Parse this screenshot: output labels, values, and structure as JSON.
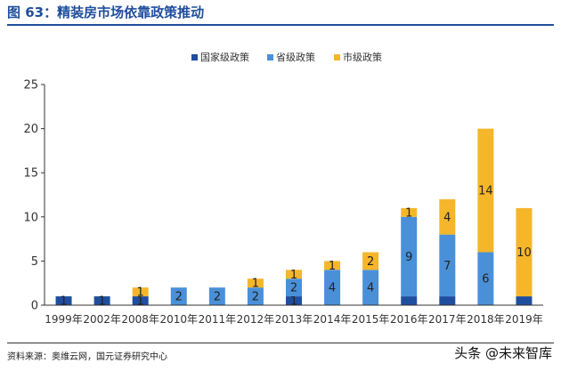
{
  "header": {
    "title": "图 63：精装房市场依靠政策推动"
  },
  "footer": {
    "source": "资料来源：奥维云网，国元证券研究中心",
    "watermark": "头条 @未来智库"
  },
  "colors": {
    "national": "#1f4e9e",
    "provincial": "#4a90d9",
    "municipal": "#f5b62a",
    "title": "#1f4e9e"
  },
  "chart_data": {
    "type": "bar",
    "stacked": true,
    "categories": [
      "1999年",
      "2002年",
      "2008年",
      "2010年",
      "2011年",
      "2012年",
      "2013年",
      "2014年",
      "2015年",
      "2016年",
      "2017年",
      "2018年",
      "2019年"
    ],
    "series": [
      {
        "name": "国家级政策",
        "values": [
          1,
          1,
          1,
          0,
          0,
          0,
          1,
          0,
          0,
          1,
          1,
          0,
          1
        ],
        "labels": [
          "1",
          "1",
          "1",
          "",
          "",
          "",
          "1",
          "",
          "",
          "",
          "",
          "",
          ""
        ]
      },
      {
        "name": "省级政策",
        "values": [
          0,
          0,
          0,
          2,
          2,
          2,
          2,
          4,
          4,
          9,
          7,
          6,
          0
        ],
        "labels": [
          "",
          "",
          "",
          "2",
          "2",
          "2",
          "2",
          "4",
          "4",
          "9",
          "7",
          "6",
          ""
        ]
      },
      {
        "name": "市级政策",
        "values": [
          0,
          0,
          1,
          0,
          0,
          1,
          1,
          1,
          2,
          1,
          4,
          14,
          10
        ],
        "labels": [
          "",
          "",
          "1",
          "",
          "",
          "1",
          "1",
          "1",
          "2",
          "1",
          "4",
          "14",
          "10"
        ]
      }
    ],
    "ylim": [
      0,
      25
    ],
    "yticks": [
      0,
      5,
      10,
      15,
      20,
      25
    ],
    "legend_position": "top-center",
    "grid": false
  }
}
